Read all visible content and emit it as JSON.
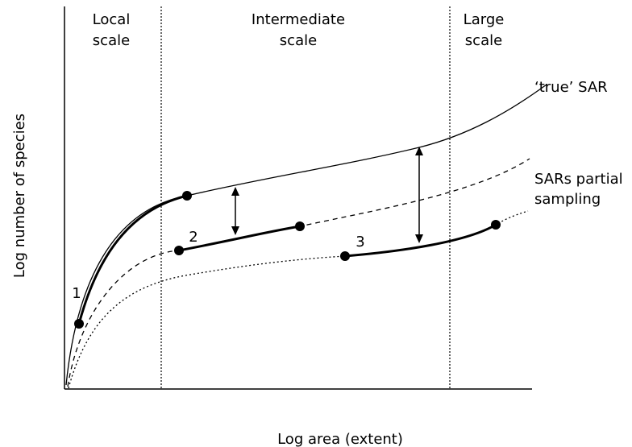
{
  "figure": {
    "scale_labels": {
      "local": [
        "Local",
        "scale"
      ],
      "intermediate": [
        "Intermediate",
        "scale"
      ],
      "large": [
        "Large",
        "scale"
      ]
    },
    "curve_labels": {
      "true_sar": "‘true’ SAR",
      "partial": [
        "SARs partial",
        "sampling"
      ]
    },
    "point_labels": [
      "1",
      "2",
      "3"
    ],
    "axes": {
      "xlabel": "Log area (extent)",
      "ylabel": "Log number of species"
    }
  }
}
